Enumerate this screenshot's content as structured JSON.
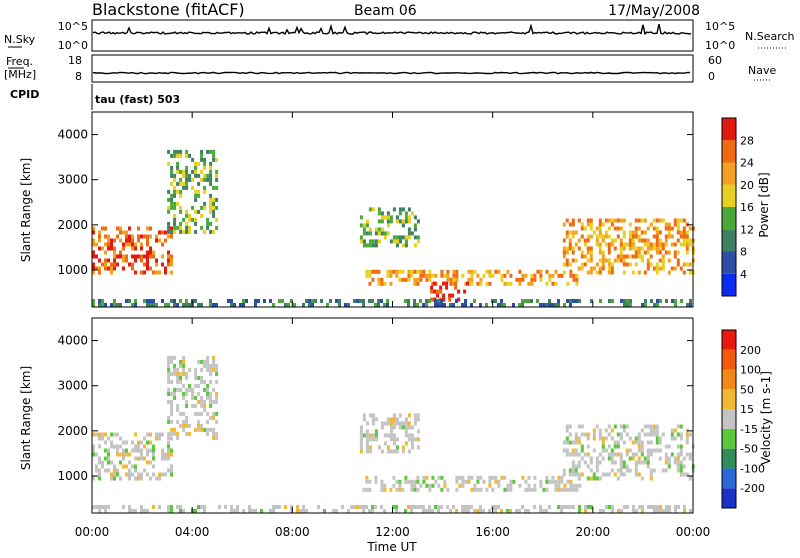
{
  "header": {
    "station": "Blackstone (fitACF)",
    "beam": "Beam 06",
    "date": "17/May/2008"
  },
  "strips": {
    "nsky_label": "N.Sky",
    "nsearch_label": "N.Search",
    "nsky_ticks": [
      "10^5",
      "10^0"
    ],
    "nsearch_ticks": [
      "10^5",
      "10^0"
    ],
    "freq_label_1": "Freq.",
    "freq_label_2": "[MHz]",
    "freq_ticks": [
      "18",
      "8"
    ],
    "nave_label": "Nave",
    "nave_ticks": [
      "60",
      "0"
    ],
    "cpid_label": "CPID",
    "cpid_value": "tau (fast) 503"
  },
  "chart_data": [
    {
      "type": "heatmap",
      "panel": "power",
      "ylabel": "Slant Range [km]",
      "xlabel": "Time UT",
      "x_ticks": [
        "00:00",
        "04:00",
        "08:00",
        "12:00",
        "16:00",
        "20:00",
        "00:00"
      ],
      "y_ticks": [
        1000,
        2000,
        3000,
        4000
      ],
      "ylim": [
        180,
        4500
      ],
      "xlim_hours": [
        0,
        24
      ],
      "colorbar": {
        "label": "Power [dB]",
        "ticks": [
          "4",
          "8",
          "12",
          "16",
          "20",
          "24",
          "28"
        ],
        "colors": [
          "#0a2cf0",
          "#2b4fa6",
          "#3f8060",
          "#4aa83a",
          "#e8d020",
          "#f2a020",
          "#f06a10",
          "#e21a10"
        ]
      },
      "regions": [
        {
          "t0": 0.0,
          "t1": 3.2,
          "r0": 900,
          "r1": 1900,
          "level": 6
        },
        {
          "t0": 3.0,
          "t1": 5.0,
          "r0": 1800,
          "r1": 3600,
          "level": 3
        },
        {
          "t0": 10.7,
          "t1": 13.0,
          "r0": 1500,
          "r1": 2300,
          "level": 3
        },
        {
          "t0": 10.8,
          "t1": 19.5,
          "r0": 650,
          "r1": 1000,
          "level": 5
        },
        {
          "t0": 13.5,
          "t1": 15.0,
          "r0": 300,
          "r1": 700,
          "level": 7
        },
        {
          "t0": 18.8,
          "t1": 24.0,
          "r0": 900,
          "r1": 2100,
          "level": 5
        },
        {
          "t0": 0.0,
          "t1": 24.0,
          "r0": 180,
          "r1": 300,
          "level": 2
        }
      ]
    },
    {
      "type": "heatmap",
      "panel": "velocity",
      "ylabel": "Slant Range [km]",
      "xlabel": "Time UT",
      "x_ticks": [
        "00:00",
        "04:00",
        "08:00",
        "12:00",
        "16:00",
        "20:00",
        "00:00"
      ],
      "y_ticks": [
        1000,
        2000,
        3000,
        4000
      ],
      "ylim": [
        180,
        4500
      ],
      "xlim_hours": [
        0,
        24
      ],
      "colorbar": {
        "label": "Velocity [m s-1]",
        "ticks": [
          "200",
          "100",
          "50",
          "15",
          "-15",
          "-50",
          "-100",
          "-200"
        ],
        "colors": [
          "#1a32c8",
          "#2a6ad8",
          "#2f8e5a",
          "#5ac83a",
          "#c4c4c4",
          "#f2b830",
          "#f28a18",
          "#f05a10",
          "#e81a10"
        ]
      },
      "regions": [
        {
          "t0": 0.0,
          "t1": 3.2,
          "r0": 900,
          "r1": 1900,
          "level": 4
        },
        {
          "t0": 3.0,
          "t1": 5.0,
          "r0": 1800,
          "r1": 3600,
          "level": 5
        },
        {
          "t0": 10.7,
          "t1": 13.0,
          "r0": 1500,
          "r1": 2300,
          "level": 4
        },
        {
          "t0": 10.8,
          "t1": 19.5,
          "r0": 650,
          "r1": 1000,
          "level": 4
        },
        {
          "t0": 18.8,
          "t1": 24.0,
          "r0": 900,
          "r1": 2100,
          "level": 4
        },
        {
          "t0": 0.0,
          "t1": 24.0,
          "r0": 180,
          "r1": 300,
          "level": 3
        }
      ]
    }
  ]
}
